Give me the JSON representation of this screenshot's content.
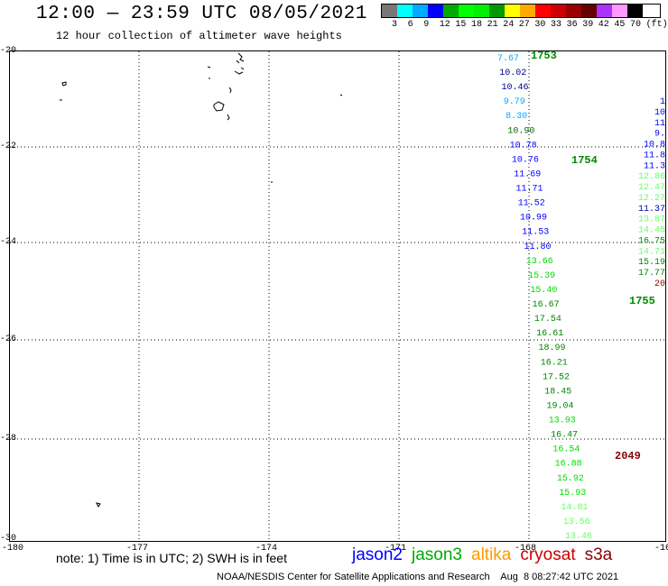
{
  "title": "12:00 — 23:59 UTC 08/05/2021",
  "subtitle": "12 hour collection of altimeter wave heights",
  "legend": {
    "colors": [
      "#777777",
      "#00ffff",
      "#00aaff",
      "#0000ff",
      "#00aa00",
      "#00ff00",
      "#00ee00",
      "#009900",
      "#ffff00",
      "#ffaa00",
      "#ff0000",
      "#cc0000",
      "#990000",
      "#660000",
      "#aa33ff",
      "#ff99ff",
      "#000000"
    ],
    "labels": [
      "3",
      "6",
      "9",
      "12",
      "15",
      "18",
      "21",
      "24",
      "27",
      "30",
      "33",
      "36",
      "39",
      "42",
      "45",
      "70",
      "(ft)"
    ]
  },
  "axes": {
    "x_ticks": [
      "-180",
      "-177",
      "-174",
      "-171",
      "-168",
      "-16"
    ],
    "y_ticks": [
      "-20",
      "-22",
      "-24",
      "-26",
      "-28",
      "-30"
    ]
  },
  "track_time_labels": [
    {
      "text": "1753",
      "color": "#008800"
    },
    {
      "text": "1754",
      "color": "#008800"
    },
    {
      "text": "1755",
      "color": "#008800"
    },
    {
      "text": "2049",
      "color": "#880000"
    }
  ],
  "observations": [
    {
      "text": "7.67",
      "color": "#00aaff"
    },
    {
      "text": "10.02",
      "color": "#000088"
    },
    {
      "text": "10.46",
      "color": "#000088"
    },
    {
      "text": "9.79",
      "color": "#00aaff"
    },
    {
      "text": "8.30",
      "color": "#00aaff"
    },
    {
      "text": "10.90",
      "color": "#006600"
    },
    {
      "text": "10.78",
      "color": "#0000ff"
    },
    {
      "text": "10.76",
      "color": "#0000ff"
    },
    {
      "text": "11.69",
      "color": "#0000ff"
    },
    {
      "text": "11.71",
      "color": "#0000ff"
    },
    {
      "text": "11.52",
      "color": "#0000ff"
    },
    {
      "text": "10.99",
      "color": "#0000ff"
    },
    {
      "text": "11.53",
      "color": "#0000ff"
    },
    {
      "text": "11.80",
      "color": "#0000ff"
    },
    {
      "text": "13.66",
      "color": "#00dd00"
    },
    {
      "text": "15.39",
      "color": "#00dd00"
    },
    {
      "text": "15.40",
      "color": "#00dd00"
    },
    {
      "text": "16.67",
      "color": "#008800"
    },
    {
      "text": "17.54",
      "color": "#008800"
    },
    {
      "text": "16.61",
      "color": "#008800"
    },
    {
      "text": "18.99",
      "color": "#008800"
    },
    {
      "text": "16.21",
      "color": "#008800"
    },
    {
      "text": "17.52",
      "color": "#008800"
    },
    {
      "text": "18.45",
      "color": "#008800"
    },
    {
      "text": "19.04",
      "color": "#008800"
    },
    {
      "text": "13.93",
      "color": "#00dd00"
    },
    {
      "text": "16.47",
      "color": "#008800"
    },
    {
      "text": "16.54",
      "color": "#00dd00"
    },
    {
      "text": "16.88",
      "color": "#00dd00"
    },
    {
      "text": "15.92",
      "color": "#00dd00"
    },
    {
      "text": "15.93",
      "color": "#00dd00"
    },
    {
      "text": "14.81",
      "color": "#66ff66"
    },
    {
      "text": "13.56",
      "color": "#66ff66"
    },
    {
      "text": "13.46",
      "color": "#66ff66"
    },
    {
      "text": "1",
      "color": "#0000ff"
    },
    {
      "text": "10",
      "color": "#0000ff"
    },
    {
      "text": "11",
      "color": "#0000ff"
    },
    {
      "text": "9.",
      "color": "#0000ff"
    },
    {
      "text": "10.8",
      "color": "#0000ff"
    },
    {
      "text": "11.8",
      "color": "#0000ff"
    },
    {
      "text": "11.3",
      "color": "#0000ff"
    },
    {
      "text": "12.86",
      "color": "#66ff66"
    },
    {
      "text": "12.47",
      "color": "#66ff66"
    },
    {
      "text": "12.27",
      "color": "#66ff66"
    },
    {
      "text": "11.37",
      "color": "#0000aa"
    },
    {
      "text": "13.87",
      "color": "#66ff66"
    },
    {
      "text": "14.45",
      "color": "#66ff66"
    },
    {
      "text": "16.75",
      "color": "#008800"
    },
    {
      "text": "14.71",
      "color": "#66ff66"
    },
    {
      "text": "15.19",
      "color": "#008800"
    },
    {
      "text": "17.77",
      "color": "#008800"
    },
    {
      "text": "20",
      "color": "#880000"
    }
  ],
  "note": "note: 1) Time is in UTC; 2) SWH is in feet",
  "missions": [
    {
      "name": "jason2",
      "color": "#0000ff"
    },
    {
      "name": "jason3",
      "color": "#00aa00"
    },
    {
      "name": "altika",
      "color": "#ff9900"
    },
    {
      "name": "cryosat",
      "color": "#cc0000"
    },
    {
      "name": "s3a",
      "color": "#880000"
    }
  ],
  "credit": "NOAA/NESDIS Center for Satellite Applications and Research    Aug  8 08:27:42 UTC 2021"
}
